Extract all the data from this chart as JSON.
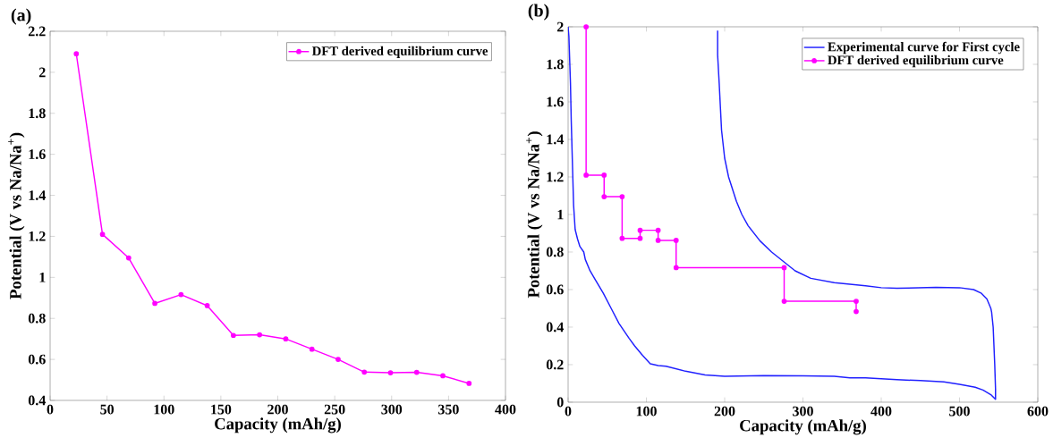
{
  "chart_data": [
    {
      "type": "line",
      "title": "(a)",
      "xlabel": "Capacity (mAh/g)",
      "ylabel": "Potential (V vs Na/Na$^{+}$)",
      "xlim": [
        0,
        400
      ],
      "ylim": [
        0.4,
        2.2
      ],
      "xticks": [
        0,
        50,
        100,
        150,
        200,
        250,
        300,
        350,
        400
      ],
      "yticks": [
        0.4,
        0.6,
        0.8,
        1,
        1.2,
        1.4,
        1.6,
        1.8,
        2,
        2.2
      ],
      "legend": "top right",
      "grid": false,
      "series": [
        {
          "name": "DFT derived equilibrium curve",
          "color": "#ff00ff",
          "marker": "circle",
          "x": [
            23,
            46,
            69,
            92,
            115,
            138,
            161,
            184,
            207,
            230,
            253,
            276,
            299,
            322,
            345,
            368
          ],
          "values": [
            2.09,
            1.21,
            1.095,
            0.873,
            0.916,
            0.862,
            0.717,
            0.72,
            0.7,
            0.65,
            0.6,
            0.538,
            0.535,
            0.537,
            0.52,
            0.483
          ]
        }
      ]
    },
    {
      "type": "line",
      "title": "(b)",
      "xlabel": "Capacity (mAh/g)",
      "ylabel": "Potential (V vs Na/Na$^{+}$)",
      "xlim": [
        0,
        600
      ],
      "ylim": [
        0,
        2
      ],
      "xticks": [
        0,
        100,
        200,
        300,
        400,
        500,
        600
      ],
      "yticks": [
        0,
        0.2,
        0.4,
        0.6,
        0.8,
        1,
        1.2,
        1.4,
        1.6,
        1.8,
        2
      ],
      "legend": "top right",
      "grid": false,
      "series": [
        {
          "name": "Experimental curve for First cycle",
          "color": "#2020ff",
          "marker": "none",
          "x": [
            0,
            1,
            3,
            4,
            6,
            7,
            9,
            12,
            15,
            20,
            22,
            28,
            35,
            45,
            55,
            65,
            78,
            85,
            95,
            105,
            115,
            125,
            150,
            175,
            200,
            250,
            300,
            340,
            360,
            380,
            400,
            420,
            450,
            480,
            500,
            520,
            530,
            540,
            546,
            546,
            545,
            543,
            541,
            540,
            535,
            528,
            518,
            500,
            470,
            420,
            400,
            380,
            340,
            310,
            290,
            275,
            260,
            245,
            230,
            222,
            215,
            205,
            200,
            196,
            193,
            191,
            191
          ],
          "values": [
            2.0,
            1.95,
            1.7,
            1.5,
            1.2,
            1.05,
            0.92,
            0.87,
            0.83,
            0.8,
            0.76,
            0.7,
            0.65,
            0.58,
            0.5,
            0.42,
            0.34,
            0.3,
            0.25,
            0.205,
            0.195,
            0.192,
            0.165,
            0.145,
            0.138,
            0.142,
            0.14,
            0.138,
            0.13,
            0.13,
            0.125,
            0.12,
            0.115,
            0.108,
            0.095,
            0.08,
            0.065,
            0.04,
            0.015,
            0.07,
            0.2,
            0.4,
            0.48,
            0.5,
            0.55,
            0.58,
            0.6,
            0.61,
            0.612,
            0.607,
            0.61,
            0.62,
            0.637,
            0.66,
            0.7,
            0.75,
            0.8,
            0.86,
            0.94,
            1.0,
            1.07,
            1.2,
            1.3,
            1.45,
            1.7,
            1.85,
            1.98
          ]
        },
        {
          "name": "DFT derived equilibrium curve",
          "color": "#ff00ff",
          "marker": "circle",
          "x": [
            23,
            23,
            46,
            46,
            69,
            69,
            92,
            92,
            115,
            115,
            138,
            138,
            276,
            276,
            368,
            368
          ],
          "values": [
            2.0,
            1.21,
            1.21,
            1.095,
            1.095,
            0.873,
            0.873,
            0.916,
            0.916,
            0.862,
            0.862,
            0.717,
            0.717,
            0.538,
            0.538,
            0.483
          ]
        }
      ]
    }
  ]
}
